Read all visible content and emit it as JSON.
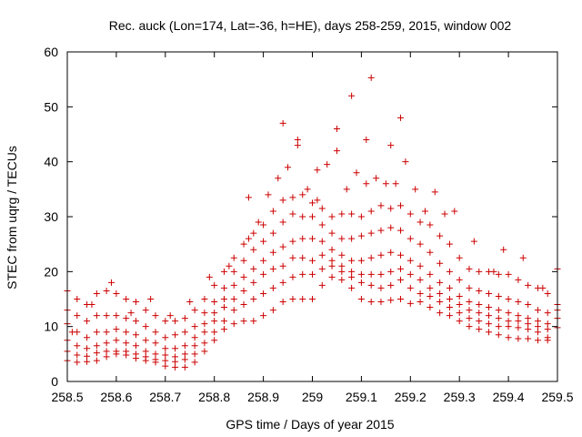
{
  "chart_data": {
    "type": "scatter",
    "title": "Rec. auck (Lon=174, Lat=-36, h=HE), days 258-259, 2015, window 002",
    "xlabel": "GPS time / Days of year 2015",
    "ylabel": "STEC from uqrg / TECUs",
    "xlim": [
      258.5,
      259.5
    ],
    "ylim": [
      0,
      60
    ],
    "xticks": [
      "258.5",
      "258.6",
      "258.7",
      "258.8",
      "258.9",
      "259",
      "259.1",
      "259.2",
      "259.3",
      "259.4",
      "259.5"
    ],
    "yticks": [
      "0",
      "10",
      "20",
      "30",
      "40",
      "50",
      "60"
    ],
    "grid": false,
    "marker": "plus",
    "color": "#cc0000",
    "series": [
      {
        "x": [
          258.5,
          258.52,
          258.54,
          258.56,
          258.58,
          258.6,
          258.62,
          258.64,
          258.66,
          258.68,
          258.7,
          258.72,
          258.74,
          258.76,
          258.78,
          258.8,
          258.82,
          258.84,
          258.86,
          258.88,
          258.9,
          258.92,
          258.94,
          258.96,
          258.98,
          259.0,
          259.02,
          259.04,
          259.06,
          259.08,
          259.1,
          259.12,
          259.14,
          259.16,
          259.18,
          259.2,
          259.22,
          259.24,
          259.26,
          259.28,
          259.3,
          259.32,
          259.34,
          259.36,
          259.38,
          259.4,
          259.42,
          259.44,
          259.46,
          259.48,
          259.5
        ],
        "y": [
          3.8,
          3.5,
          3.6,
          3.8,
          4.5,
          5,
          4.8,
          4.2,
          3.8,
          3.5,
          2.8,
          2.6,
          2.6,
          3.5,
          5.5,
          7.5,
          9.5,
          10.5,
          11,
          11,
          12,
          13,
          14.5,
          15,
          15,
          15,
          17.5,
          19,
          18.5,
          17,
          15,
          14.5,
          14.5,
          14.8,
          15,
          14.2,
          14.5,
          13.5,
          12.5,
          12,
          11,
          10,
          9.5,
          9,
          8.5,
          8,
          7.8,
          7.8,
          7.5,
          7.5,
          9.8
        ]
      },
      {
        "x": [
          258.5,
          258.52,
          258.54,
          258.56,
          258.58,
          258.6,
          258.62,
          258.64,
          258.66,
          258.68,
          258.7,
          258.72,
          258.74,
          258.76,
          258.78,
          258.8,
          258.82,
          258.84,
          258.86,
          258.88,
          258.9,
          258.92,
          258.94,
          258.96,
          258.98,
          259.0,
          259.02,
          259.04,
          259.06,
          259.08,
          259.1,
          259.12,
          259.14,
          259.16,
          259.18,
          259.2,
          259.22,
          259.24,
          259.26,
          259.28,
          259.3,
          259.32,
          259.34,
          259.36,
          259.38,
          259.4,
          259.42,
          259.44,
          259.46,
          259.48,
          259.5
        ],
        "y": [
          5.5,
          4.8,
          4.6,
          5.2,
          5.5,
          5.5,
          5.5,
          5,
          4.5,
          4,
          3.8,
          3.6,
          4,
          5,
          7,
          9,
          11,
          13,
          14,
          15,
          16,
          17,
          18,
          19,
          19.5,
          19.5,
          20.5,
          21,
          20,
          19,
          18,
          17.5,
          17,
          17.5,
          18.5,
          17,
          16,
          15.5,
          14.5,
          13.5,
          12.5,
          11.5,
          11,
          10.5,
          10,
          10,
          9.8,
          9.5,
          9,
          8,
          11.5
        ]
      },
      {
        "x": [
          258.5,
          258.52,
          258.54,
          258.56,
          258.58,
          258.6,
          258.62,
          258.64,
          258.66,
          258.68,
          258.7,
          258.72,
          258.74,
          258.76,
          258.78,
          258.8,
          258.82,
          258.84,
          258.86,
          258.88,
          258.9,
          258.92,
          258.94,
          258.96,
          258.98,
          259.0,
          259.02,
          259.04,
          259.06,
          259.08,
          259.1,
          259.12,
          259.14,
          259.16,
          259.18,
          259.2,
          259.22,
          259.24,
          259.26,
          259.28,
          259.3,
          259.32,
          259.34,
          259.36,
          259.38,
          259.4,
          259.42,
          259.44,
          259.46,
          259.48,
          259.5
        ],
        "y": [
          7.5,
          6.5,
          6,
          6.5,
          7,
          7.5,
          7,
          6.5,
          5.5,
          5,
          4.8,
          4.5,
          5,
          6.5,
          9,
          11,
          13.5,
          15,
          16.5,
          18,
          19.5,
          20.5,
          21,
          22.5,
          22.5,
          22,
          23,
          22,
          21,
          20,
          19.5,
          19.5,
          19.5,
          20,
          20.5,
          19.5,
          18.5,
          17,
          16,
          15,
          14,
          13,
          12.5,
          12,
          11.5,
          11,
          11,
          10.5,
          10,
          9.5,
          13
        ]
      },
      {
        "x": [
          258.5,
          258.52,
          258.54,
          258.56,
          258.58,
          258.6,
          258.62,
          258.64,
          258.66,
          258.68,
          258.7,
          258.72,
          258.74,
          258.76,
          258.78,
          258.8,
          258.82,
          258.84,
          258.86,
          258.88,
          258.9,
          258.92,
          258.94,
          258.96,
          258.98,
          259.0,
          259.02,
          259.04,
          259.06,
          259.08,
          259.1,
          259.12,
          259.14,
          259.16,
          259.18,
          259.2,
          259.22,
          259.24,
          259.26,
          259.28,
          259.3,
          259.32,
          259.34,
          259.36,
          259.38,
          259.4,
          259.42,
          259.44,
          259.46,
          259.48,
          259.5
        ],
        "y": [
          10.5,
          9,
          8,
          9,
          9,
          9.5,
          9,
          8.5,
          7.5,
          7,
          6,
          6,
          6.5,
          8,
          10.5,
          12.5,
          15,
          17.5,
          19,
          20.5,
          22,
          23.5,
          24.5,
          25.5,
          26,
          26,
          25.5,
          24,
          23,
          22,
          22,
          22.5,
          23,
          23.5,
          23,
          22,
          21,
          19.5,
          18,
          17,
          15.5,
          14.5,
          14,
          13.5,
          13,
          12.5,
          12,
          11.5,
          11,
          10.5,
          14
        ]
      },
      {
        "x": [
          258.5,
          258.52,
          258.54,
          258.56,
          258.58,
          258.6,
          258.62,
          258.64,
          258.66,
          258.68,
          258.7,
          258.72,
          258.74,
          258.76,
          258.78,
          258.8,
          258.82,
          258.84,
          258.86,
          258.88,
          258.9,
          258.92,
          258.94,
          258.96,
          258.98,
          259.0,
          259.02,
          259.04,
          259.06,
          259.08,
          259.1,
          259.12,
          259.14,
          259.16,
          259.18,
          259.2,
          259.22,
          259.24,
          259.26,
          259.28,
          259.3,
          259.32,
          259.34,
          259.36,
          259.38,
          259.4,
          259.42,
          259.44,
          259.46,
          259.48,
          259.5
        ],
        "y": [
          13,
          12,
          11,
          12,
          12,
          12,
          11.5,
          11,
          10,
          9,
          8,
          8.5,
          9,
          10,
          12.5,
          14.5,
          17,
          20,
          22,
          24,
          25.5,
          27,
          29,
          30.5,
          30,
          30,
          28.5,
          27,
          26,
          26,
          26.5,
          27,
          27.5,
          28,
          27.5,
          26,
          25,
          23.5,
          21.5,
          20,
          18.5,
          17,
          16.5,
          16,
          15.5,
          15,
          14.5,
          14,
          13,
          12.5,
          20.5
        ]
      },
      {
        "x": [
          258.5,
          258.52,
          258.54,
          258.56,
          258.58,
          258.6,
          258.62,
          258.64,
          258.66,
          258.68,
          258.7,
          258.72,
          258.74,
          258.76,
          258.78,
          258.8,
          258.82,
          258.84,
          258.86,
          258.88,
          258.9,
          258.92,
          258.94,
          258.96,
          258.98,
          259.0,
          259.02,
          259.04,
          259.06,
          259.08,
          259.1,
          259.12,
          259.14,
          259.16,
          259.18,
          259.2,
          259.22,
          259.24,
          259.26,
          259.28,
          259.3,
          259.32,
          259.34,
          259.36,
          259.38,
          259.4,
          259.42,
          259.44,
          259.46,
          259.48
        ],
        "y": [
          16.5,
          15,
          14,
          16,
          16.5,
          16,
          15,
          14.5,
          13,
          12,
          11,
          11,
          11.5,
          13,
          15,
          17.5,
          20,
          22.5,
          25,
          27,
          28.5,
          31,
          33,
          33.5,
          34,
          32.5,
          31.5,
          30,
          30.5,
          30.5,
          30,
          31,
          32,
          31.5,
          32,
          30.5,
          29,
          28.5,
          26.5,
          25,
          22.5,
          20.5,
          20,
          20,
          19.5,
          19.5,
          18.5,
          17.5,
          17,
          16
        ]
      },
      {
        "x": [
          258.51,
          258.55,
          258.59,
          258.63,
          258.67,
          258.71,
          258.75,
          258.79,
          258.83,
          258.87,
          258.89,
          258.91,
          258.93,
          258.95,
          258.97,
          258.99,
          259.01,
          259.03,
          259.05,
          259.07,
          259.09,
          259.11,
          259.13,
          259.15,
          259.17,
          259.19,
          259.21,
          259.23,
          259.25,
          259.27,
          259.29,
          259.33,
          259.37,
          259.39,
          259.43,
          259.47
        ],
        "y": [
          9,
          14,
          18,
          12.5,
          15,
          12,
          14.5,
          19,
          21,
          26,
          29,
          34,
          37,
          39,
          43,
          35,
          33,
          39.5,
          42,
          35,
          38,
          36,
          37,
          36,
          36,
          40,
          35,
          31,
          34.5,
          30.5,
          31,
          25.5,
          20,
          24,
          22.5,
          17
        ]
      },
      {
        "x": [
          258.87,
          258.94,
          258.97,
          259.01,
          259.05,
          259.08,
          259.11,
          259.12,
          259.16,
          259.18
        ],
        "y": [
          33.5,
          47,
          44,
          38.5,
          46,
          52,
          44,
          55.3,
          43,
          48
        ]
      }
    ]
  }
}
